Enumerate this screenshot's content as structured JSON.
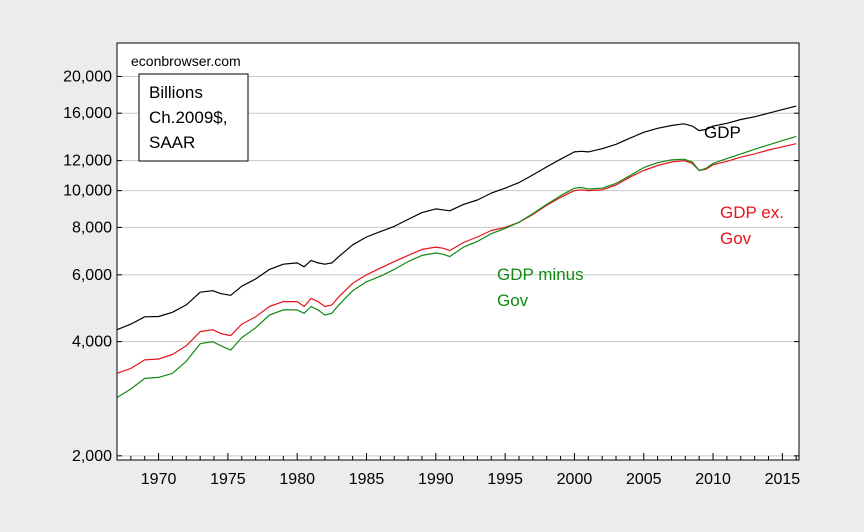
{
  "chart_data": {
    "type": "line",
    "source_note": "econbrowser.com",
    "units_box": [
      "Billions",
      "Ch.2009$,",
      "SAAR"
    ],
    "y_scale": "log",
    "ylim": [
      1950,
      24500
    ],
    "xlim": [
      1967.0,
      2016.2
    ],
    "y_ticks": [
      2000,
      4000,
      6000,
      8000,
      10000,
      12000,
      16000,
      20000
    ],
    "y_tick_labels": [
      "2,000",
      "4,000",
      "6,000",
      "8,000",
      "10,000",
      "12,000",
      "16,000",
      "20,000"
    ],
    "x_ticks": [
      1970,
      1975,
      1980,
      1985,
      1990,
      1995,
      2000,
      2005,
      2010,
      2015
    ],
    "x_tick_labels": [
      "1970",
      "1975",
      "1980",
      "1985",
      "1990",
      "1995",
      "2000",
      "2005",
      "2010",
      "2015"
    ],
    "grid": "horizontal",
    "series": [
      {
        "name": "GDP",
        "label_lines": [
          "GDP"
        ],
        "color": "#000000",
        "x": [
          1967.0,
          1968.0,
          1969.0,
          1970.0,
          1971.0,
          1972.0,
          1973.0,
          1973.9,
          1974.5,
          1975.2,
          1976.0,
          1977.0,
          1978.0,
          1979.0,
          1980.0,
          1980.5,
          1981.0,
          1981.5,
          1982.0,
          1982.5,
          1983.0,
          1984.0,
          1985.0,
          1986.0,
          1987.0,
          1988.0,
          1989.0,
          1990.0,
          1990.5,
          1991.0,
          1992.0,
          1993.0,
          1994.0,
          1995.0,
          1996.0,
          1997.0,
          1998.0,
          1999.0,
          2000.0,
          2000.5,
          2001.0,
          2002.0,
          2003.0,
          2004.0,
          2005.0,
          2006.0,
          2007.0,
          2007.9,
          2008.5,
          2009.0,
          2009.5,
          2010.0,
          2011.0,
          2012.0,
          2013.0,
          2014.0,
          2015.0,
          2016.0
        ],
        "y": [
          4300,
          4450,
          4650,
          4660,
          4780,
          5000,
          5400,
          5450,
          5350,
          5300,
          5600,
          5850,
          6200,
          6400,
          6450,
          6300,
          6550,
          6450,
          6400,
          6450,
          6700,
          7200,
          7550,
          7800,
          8050,
          8400,
          8750,
          8950,
          8900,
          8850,
          9200,
          9450,
          9850,
          10150,
          10500,
          11000,
          11550,
          12100,
          12650,
          12700,
          12650,
          12900,
          13250,
          13750,
          14250,
          14600,
          14850,
          15000,
          14800,
          14400,
          14500,
          14800,
          15050,
          15400,
          15650,
          16000,
          16350,
          16700
        ]
      },
      {
        "name": "GDP ex. Gov",
        "label_lines": [
          "GDP ex.",
          "Gov"
        ],
        "color": "#e8141b",
        "x": [
          1967.0,
          1968.0,
          1969.0,
          1970.0,
          1971.0,
          1972.0,
          1973.0,
          1973.9,
          1974.5,
          1975.2,
          1976.0,
          1977.0,
          1978.0,
          1979.0,
          1980.0,
          1980.5,
          1981.0,
          1981.5,
          1982.0,
          1982.5,
          1983.0,
          1984.0,
          1985.0,
          1986.0,
          1987.0,
          1988.0,
          1989.0,
          1990.0,
          1990.5,
          1991.0,
          1992.0,
          1993.0,
          1994.0,
          1995.0,
          1996.0,
          1997.0,
          1998.0,
          1999.0,
          2000.0,
          2000.5,
          2001.0,
          2002.0,
          2003.0,
          2004.0,
          2005.0,
          2006.0,
          2007.0,
          2007.9,
          2008.5,
          2009.0,
          2009.5,
          2010.0,
          2011.0,
          2012.0,
          2013.0,
          2014.0,
          2015.0,
          2016.0
        ],
        "y": [
          3300,
          3400,
          3580,
          3600,
          3700,
          3900,
          4250,
          4300,
          4200,
          4150,
          4450,
          4650,
          4950,
          5100,
          5100,
          4950,
          5200,
          5100,
          4950,
          5000,
          5250,
          5700,
          6000,
          6250,
          6500,
          6750,
          7000,
          7100,
          7050,
          6950,
          7300,
          7550,
          7850,
          8000,
          8250,
          8650,
          9150,
          9600,
          10000,
          10050,
          10000,
          10050,
          10350,
          10850,
          11300,
          11650,
          11900,
          12000,
          11800,
          11300,
          11400,
          11700,
          11950,
          12250,
          12500,
          12800,
          13050,
          13300
        ]
      },
      {
        "name": "GDP minus Gov",
        "label_lines": [
          "GDP minus",
          "Gov"
        ],
        "color": "#118a13",
        "x": [
          1967.0,
          1968.0,
          1969.0,
          1970.0,
          1971.0,
          1972.0,
          1973.0,
          1973.9,
          1974.5,
          1975.2,
          1976.0,
          1977.0,
          1978.0,
          1979.0,
          1980.0,
          1980.5,
          1981.0,
          1981.5,
          1982.0,
          1982.5,
          1983.0,
          1984.0,
          1985.0,
          1986.0,
          1987.0,
          1988.0,
          1989.0,
          1990.0,
          1990.5,
          1991.0,
          1992.0,
          1993.0,
          1994.0,
          1995.0,
          1996.0,
          1997.0,
          1998.0,
          1999.0,
          2000.0,
          2000.5,
          2001.0,
          2002.0,
          2003.0,
          2004.0,
          2005.0,
          2006.0,
          2007.0,
          2007.9,
          2008.5,
          2009.0,
          2009.5,
          2010.0,
          2011.0,
          2012.0,
          2013.0,
          2014.0,
          2015.0,
          2016.0
        ],
        "y": [
          2850,
          3000,
          3200,
          3220,
          3300,
          3550,
          3950,
          4000,
          3900,
          3800,
          4100,
          4350,
          4700,
          4850,
          4850,
          4750,
          4950,
          4850,
          4700,
          4750,
          5000,
          5450,
          5750,
          5950,
          6200,
          6500,
          6750,
          6850,
          6800,
          6700,
          7100,
          7350,
          7700,
          7950,
          8250,
          8700,
          9200,
          9700,
          10150,
          10200,
          10100,
          10150,
          10450,
          10950,
          11500,
          11850,
          12050,
          12100,
          11900,
          11300,
          11450,
          11800,
          12150,
          12500,
          12850,
          13200,
          13550,
          13900
        ]
      }
    ]
  }
}
